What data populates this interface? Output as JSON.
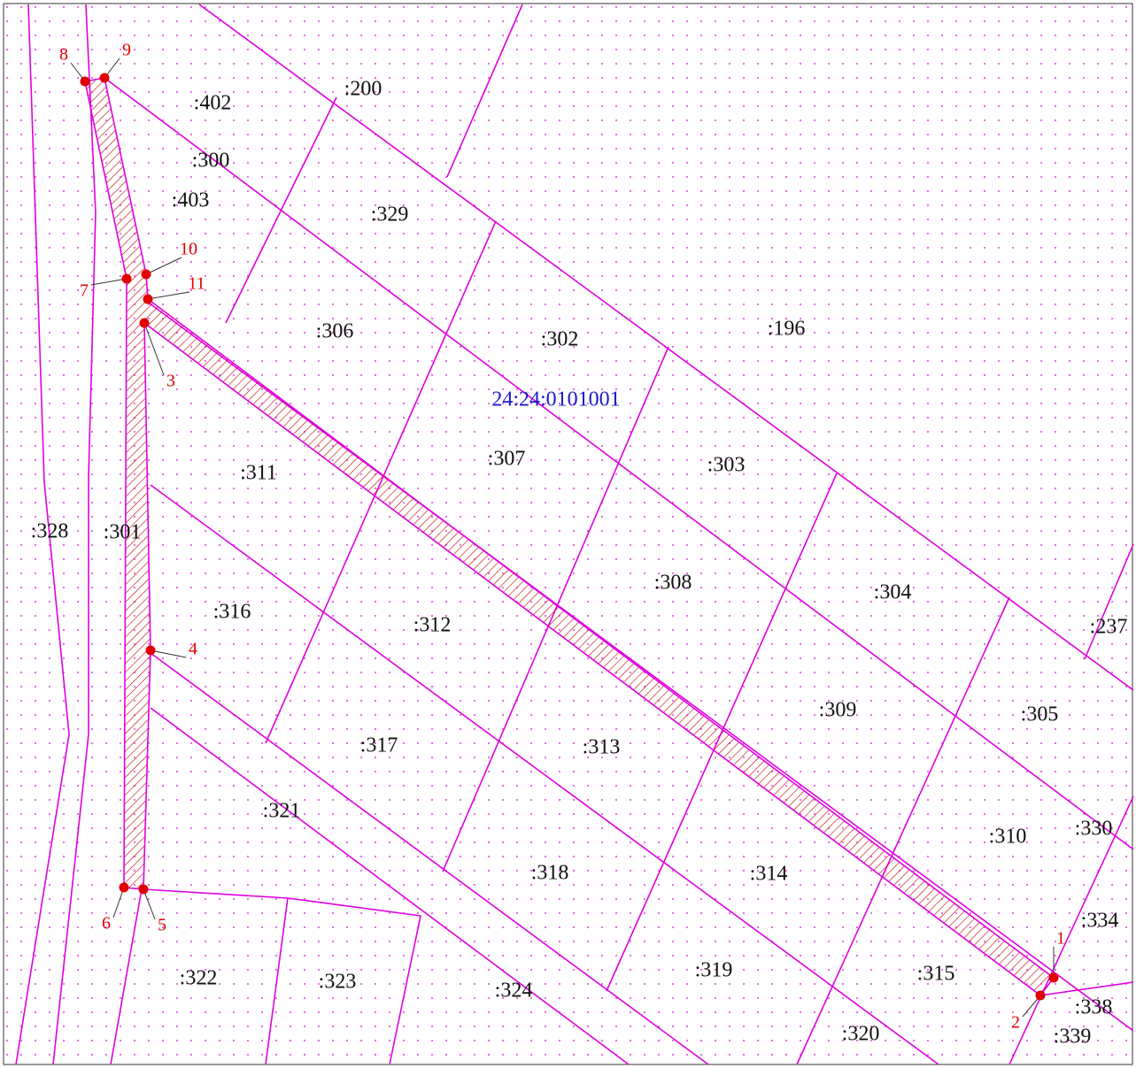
{
  "block": "24:24:0101001",
  "parcels": [
    ":402",
    ":200",
    ":300",
    ":403",
    ":329",
    ":306",
    ":302",
    ":196",
    ":311",
    ":307",
    ":303",
    ":328",
    ":301",
    ":308",
    ":304",
    ":316",
    ":312",
    ":237",
    ":309",
    ":305",
    ":317",
    ":313",
    ":321",
    ":310",
    ":330",
    ":318",
    ":314",
    ":334",
    ":322",
    ":323",
    ":324",
    ":319",
    ":315",
    ":338",
    ":320",
    ":339"
  ],
  "points": [
    "1",
    "2",
    "3",
    "4",
    "5",
    "6",
    "7",
    "8",
    "9",
    "10",
    "11"
  ]
}
